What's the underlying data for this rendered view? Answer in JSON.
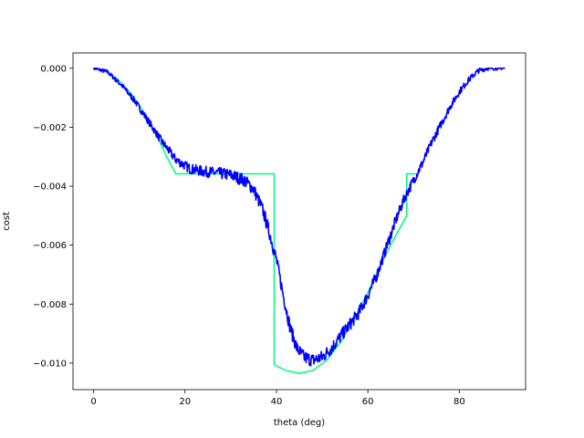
{
  "chart_data": {
    "type": "line",
    "title": "",
    "xlabel": "theta (deg)",
    "ylabel": "cost",
    "xlim": [
      -4.5,
      94.5
    ],
    "ylim": [
      -0.0109,
      0.00052
    ],
    "grid": false,
    "legend": "none",
    "x_ticks": [
      0,
      20,
      40,
      60,
      80
    ],
    "x_tick_labels": [
      "0",
      "20",
      "40",
      "60",
      "80"
    ],
    "y_ticks": [
      0.0,
      -0.002,
      -0.004,
      -0.006,
      -0.008,
      -0.01
    ],
    "y_tick_labels": [
      "0.000",
      "−0.002",
      "−0.004",
      "−0.006",
      "−0.008",
      "−0.010"
    ],
    "series": [
      {
        "color": "#00fa7d",
        "x": [
          0,
          2,
          4,
          6,
          8,
          10,
          12,
          14,
          16,
          18,
          30,
          39.5,
          39.5,
          42,
          45,
          48,
          51,
          54,
          57,
          60,
          63,
          66,
          68.5,
          68.5,
          70.5
        ],
        "y": [
          0.0,
          -5e-05,
          -0.00022,
          -0.00048,
          -0.00082,
          -0.00125,
          -0.00175,
          -0.00235,
          -0.003,
          -0.00358,
          -0.00358,
          -0.00358,
          -0.01005,
          -0.01025,
          -0.01035,
          -0.01025,
          -0.0099,
          -0.0093,
          -0.0085,
          -0.0076,
          -0.0066,
          -0.0057,
          -0.005,
          -0.00358,
          -0.00358
        ]
      },
      {
        "color": "#0000ff",
        "noisy": true,
        "x": [
          0,
          3,
          6,
          9,
          12,
          15,
          18,
          21,
          24,
          27,
          30,
          33,
          35,
          37,
          38.5,
          40,
          41.5,
          43,
          44.5,
          46,
          48,
          50,
          52,
          54,
          56,
          58,
          60,
          62,
          64,
          66,
          68,
          70,
          72,
          74,
          76,
          78,
          80,
          82,
          84,
          86,
          88,
          90
        ],
        "y": [
          0.0,
          -0.00012,
          -0.00055,
          -0.0011,
          -0.0018,
          -0.0025,
          -0.0031,
          -0.0034,
          -0.0035,
          -0.00355,
          -0.00362,
          -0.0038,
          -0.0041,
          -0.0048,
          -0.0056,
          -0.0065,
          -0.0077,
          -0.0088,
          -0.0095,
          -0.0098,
          -0.0099,
          -0.0098,
          -0.0095,
          -0.0091,
          -0.0087,
          -0.0083,
          -0.0077,
          -0.007,
          -0.0061,
          -0.0052,
          -0.0044,
          -0.0038,
          -0.0032,
          -0.0025,
          -0.0019,
          -0.0013,
          -0.0008,
          -0.0004,
          -0.0001,
          0.0,
          0.0,
          0.0
        ]
      }
    ]
  }
}
